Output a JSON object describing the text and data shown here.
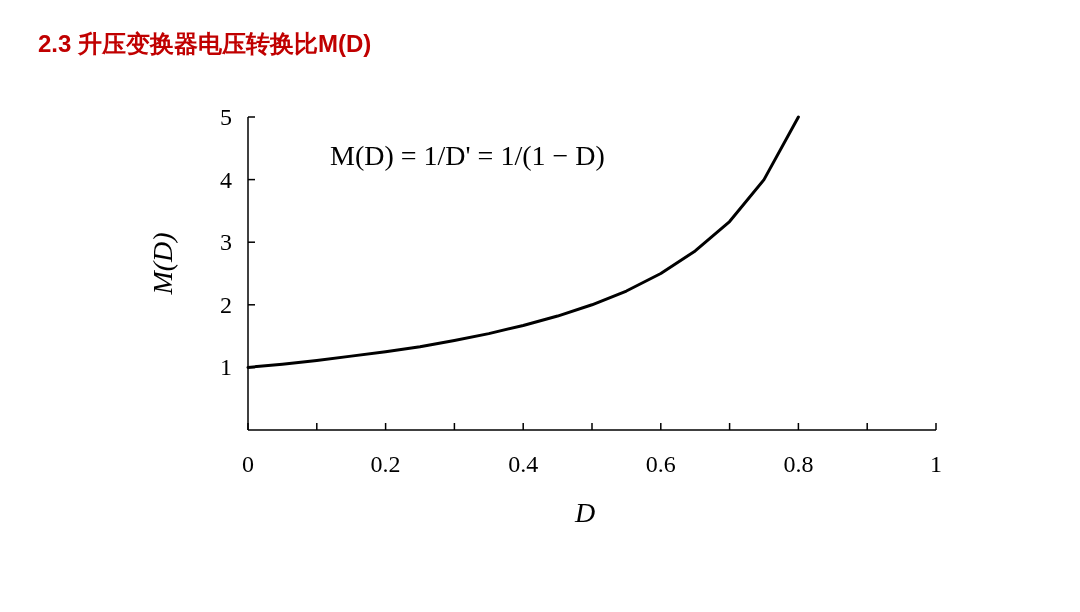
{
  "chart_data": {
    "type": "line",
    "title": "2.3 升压变换器电压转换比M(D)",
    "xlabel": "D",
    "ylabel": "M(D)",
    "x": [
      0,
      0.05,
      0.1,
      0.15,
      0.2,
      0.25,
      0.3,
      0.35,
      0.4,
      0.45,
      0.5,
      0.55,
      0.6,
      0.65,
      0.7,
      0.75,
      0.8
    ],
    "series": [
      {
        "color": "#000000",
        "values": [
          1,
          1.05,
          1.11,
          1.18,
          1.25,
          1.33,
          1.43,
          1.54,
          1.67,
          1.82,
          2,
          2.22,
          2.5,
          2.86,
          3.33,
          4,
          5
        ]
      }
    ],
    "xlim": [
      0,
      1
    ],
    "ylim": [
      0,
      5
    ],
    "xticks": [
      0,
      {
        "value": 0.1,
        "label": null
      },
      {
        "value": 0.2,
        "label": "0.2"
      },
      {
        "value": 0.3,
        "label": null
      },
      {
        "value": 0.4,
        "label": "0.4"
      },
      {
        "value": 0.5,
        "label": null
      },
      {
        "value": 0.6,
        "label": "0.6"
      },
      {
        "value": 0.7,
        "label": null
      },
      {
        "value": 0.8,
        "label": "0.8"
      },
      {
        "value": 0.9,
        "label": null
      },
      1
    ],
    "yticks": [
      1,
      2,
      3,
      4,
      5
    ],
    "annotations": [
      "M(D) = 1/D' = 1/(1 − D)"
    ]
  }
}
